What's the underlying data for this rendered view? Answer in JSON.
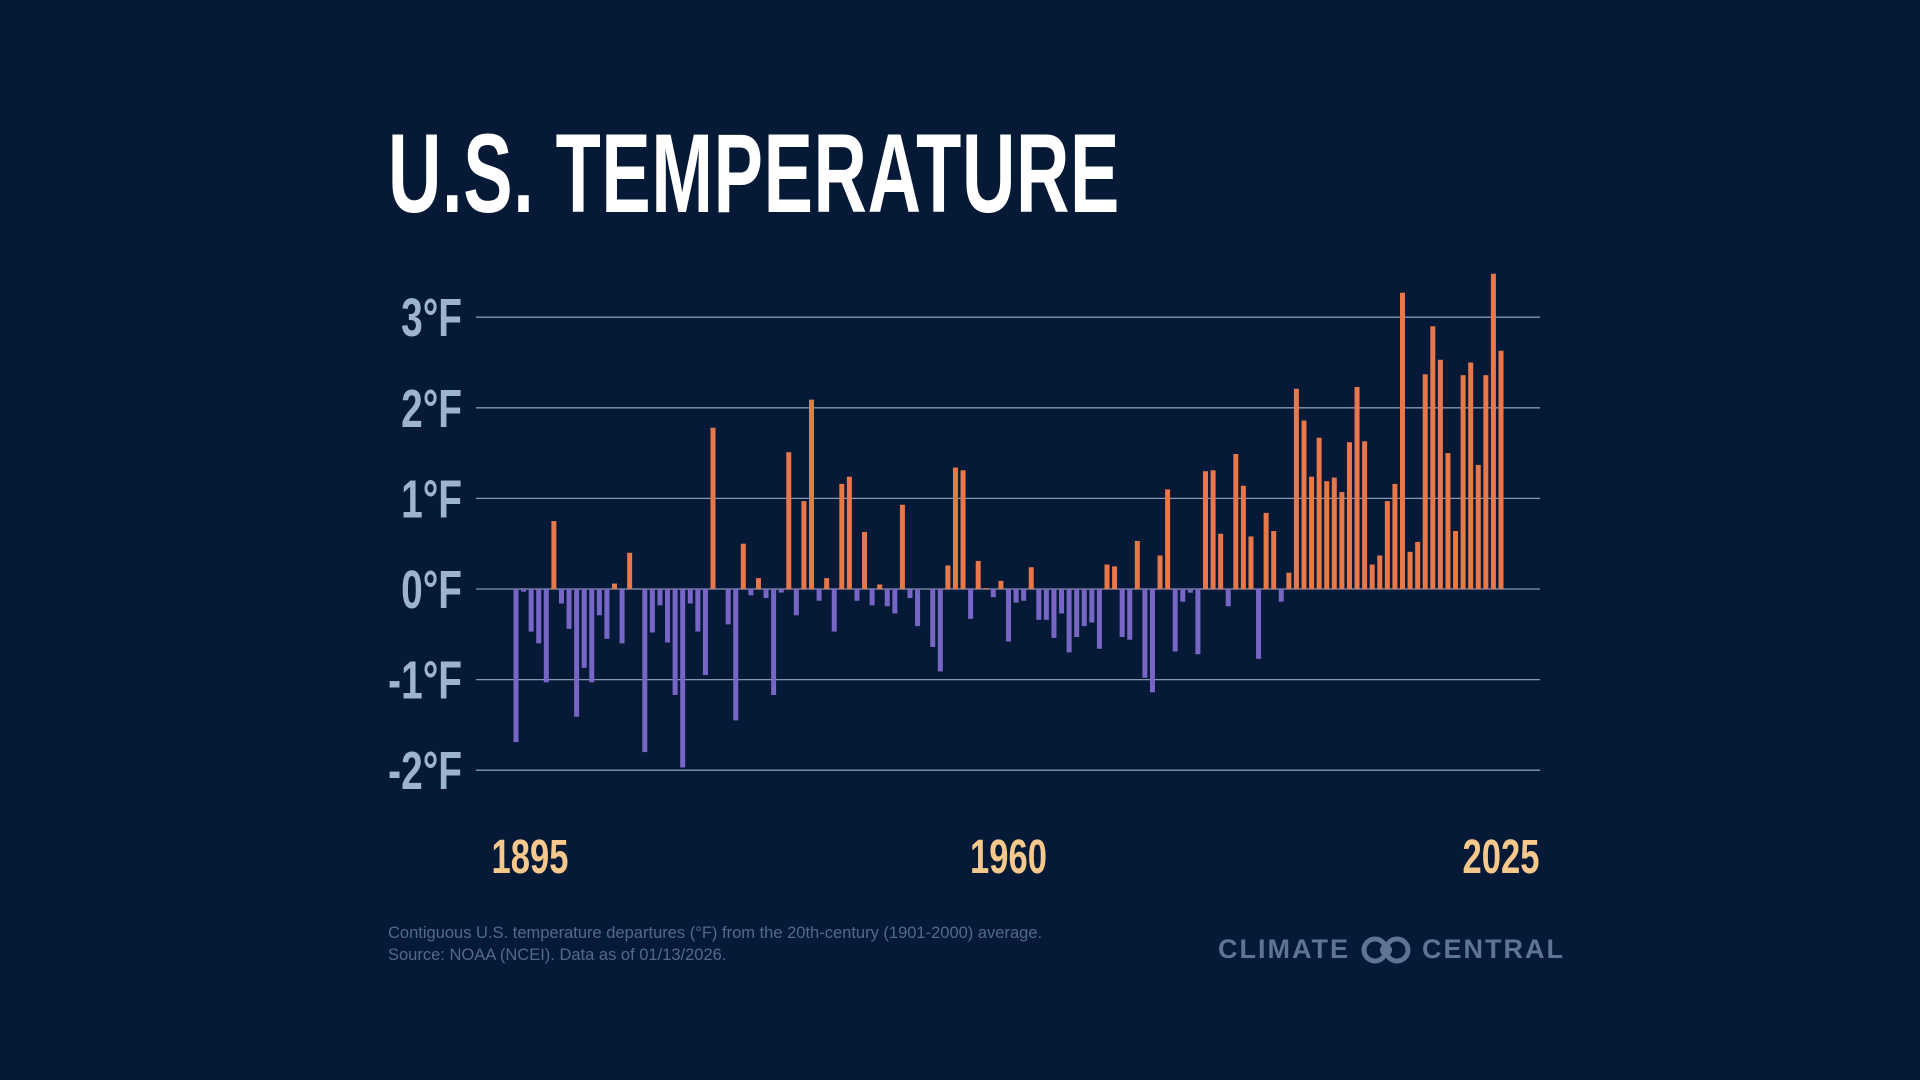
{
  "title": "U.S. TEMPERATURE",
  "footnote": {
    "line1": "Contiguous U.S. temperature departures (°F) from the 20th-century (1901-2000) average.",
    "line2": "Source: NOAA (NCEI). Data as of 01/13/2026."
  },
  "logo": {
    "left": "CLIMATE",
    "right": "CENTRAL",
    "icon": "climate-central-rings-icon"
  },
  "colors": {
    "background": "#061a37",
    "positive": "#e8774a",
    "negative": "#7866c6",
    "year_labels": "#f7c88c",
    "axis_labels": "#9fb3cf"
  },
  "chart_data": {
    "type": "bar",
    "title": "U.S. TEMPERATURE",
    "xlabel": "",
    "ylabel": "",
    "ylim": [
      -2,
      3.5
    ],
    "yticks": [
      3,
      2,
      1,
      0,
      -1,
      -2
    ],
    "ytick_labels": [
      "3°F",
      "2°F",
      "1°F",
      "0°F",
      "-1°F",
      "-2°F"
    ],
    "xtick_labels": [
      "1895",
      "1960",
      "2025"
    ],
    "xticks": [
      1895,
      1960,
      2025
    ],
    "grid": true,
    "start_year": 1895,
    "end_year": 2025,
    "values": [
      -1.69,
      -0.03,
      -0.47,
      -0.6,
      -1.03,
      0.75,
      -0.16,
      -0.44,
      -1.41,
      -0.87,
      -1.03,
      -0.29,
      -0.55,
      0.06,
      -0.6,
      0.4,
      0.0,
      -1.8,
      -0.48,
      -0.18,
      -0.59,
      -1.17,
      -1.97,
      -0.16,
      -0.47,
      -0.95,
      1.78,
      0.0,
      -0.39,
      -1.45,
      0.5,
      -0.07,
      0.12,
      -0.1,
      -1.17,
      -0.04,
      1.51,
      -0.29,
      0.97,
      2.09,
      -0.13,
      0.12,
      -0.47,
      1.16,
      1.24,
      -0.13,
      0.63,
      -0.18,
      0.05,
      -0.19,
      -0.27,
      0.93,
      -0.1,
      -0.41,
      0.0,
      -0.64,
      -0.91,
      0.26,
      1.34,
      1.31,
      -0.33,
      0.31,
      0.01,
      -0.09,
      0.09,
      -0.58,
      -0.15,
      -0.13,
      0.24,
      -0.34,
      -0.34,
      -0.54,
      -0.27,
      -0.7,
      -0.53,
      -0.41,
      -0.37,
      -0.66,
      0.27,
      0.25,
      -0.53,
      -0.56,
      0.53,
      -0.98,
      -1.14,
      0.37,
      1.1,
      -0.69,
      -0.14,
      -0.04,
      -0.72,
      1.3,
      1.31,
      0.61,
      -0.19,
      1.49,
      1.14,
      0.58,
      -0.77,
      0.84,
      0.64,
      -0.14,
      0.18,
      2.21,
      1.86,
      1.24,
      1.67,
      1.19,
      1.23,
      1.07,
      1.62,
      2.23,
      1.63,
      0.27,
      0.37,
      0.97,
      1.16,
      3.27,
      0.41,
      0.52,
      2.37,
      2.9,
      2.53,
      1.5,
      0.64,
      2.36,
      2.5,
      1.37,
      2.36,
      3.48,
      2.63
    ]
  }
}
